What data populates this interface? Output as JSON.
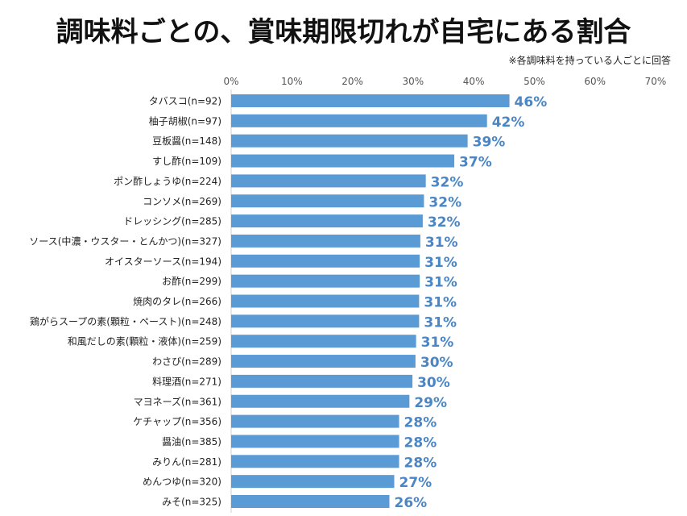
{
  "chart_data": {
    "type": "bar",
    "orientation": "horizontal",
    "title": "調味料ごとの、賞味期限切れが自宅にある割合",
    "note": "※各調味料を持っている人ごとに回答",
    "xlim": [
      0,
      70
    ],
    "xticks": [
      "0%",
      "10%",
      "20%",
      "30%",
      "40%",
      "50%",
      "60%",
      "70%"
    ],
    "grid": false,
    "legend": "none",
    "categories": [
      "タバスコ(n=92)",
      "柚子胡椒(n=97)",
      "豆板醤(n=148)",
      "すし酢(n=109)",
      "ポン酢しょうゆ(n=224)",
      "コンソメ(n=269)",
      "ドレッシング(n=285)",
      "ソース(中濃・ウスター・とんかつ)(n=327)",
      "オイスターソース(n=194)",
      "お酢(n=299)",
      "焼肉のタレ(n=266)",
      "鶏がらスープの素(顆粒・ペースト)(n=248)",
      "和風だしの素(顆粒・液体)(n=259)",
      "わさび(n=289)",
      "料理酒(n=271)",
      "マヨネーズ(n=361)",
      "ケチャップ(n=356)",
      "醤油(n=385)",
      "みりん(n=281)",
      "めんつゆ(n=320)",
      "みそ(n=325)"
    ],
    "values": [
      45.9,
      42.2,
      39.0,
      36.8,
      32.1,
      31.8,
      31.6,
      31.2,
      31.1,
      31.1,
      31.0,
      31.0,
      30.5,
      30.4,
      29.9,
      29.4,
      27.7,
      27.7,
      27.7,
      26.9,
      26.1
    ],
    "value_labels": [
      "46%",
      "42%",
      "39%",
      "37%",
      "32%",
      "32%",
      "32%",
      "31%",
      "31%",
      "31%",
      "31%",
      "31%",
      "31%",
      "30%",
      "30%",
      "29%",
      "28%",
      "28%",
      "28%",
      "27%",
      "26%"
    ],
    "colors": {
      "bar": "#5b9bd5",
      "value_label": "#4a86c5",
      "axis_text": "#555555",
      "category_text": "#222222",
      "axis_line": "#d0d0d0"
    }
  }
}
